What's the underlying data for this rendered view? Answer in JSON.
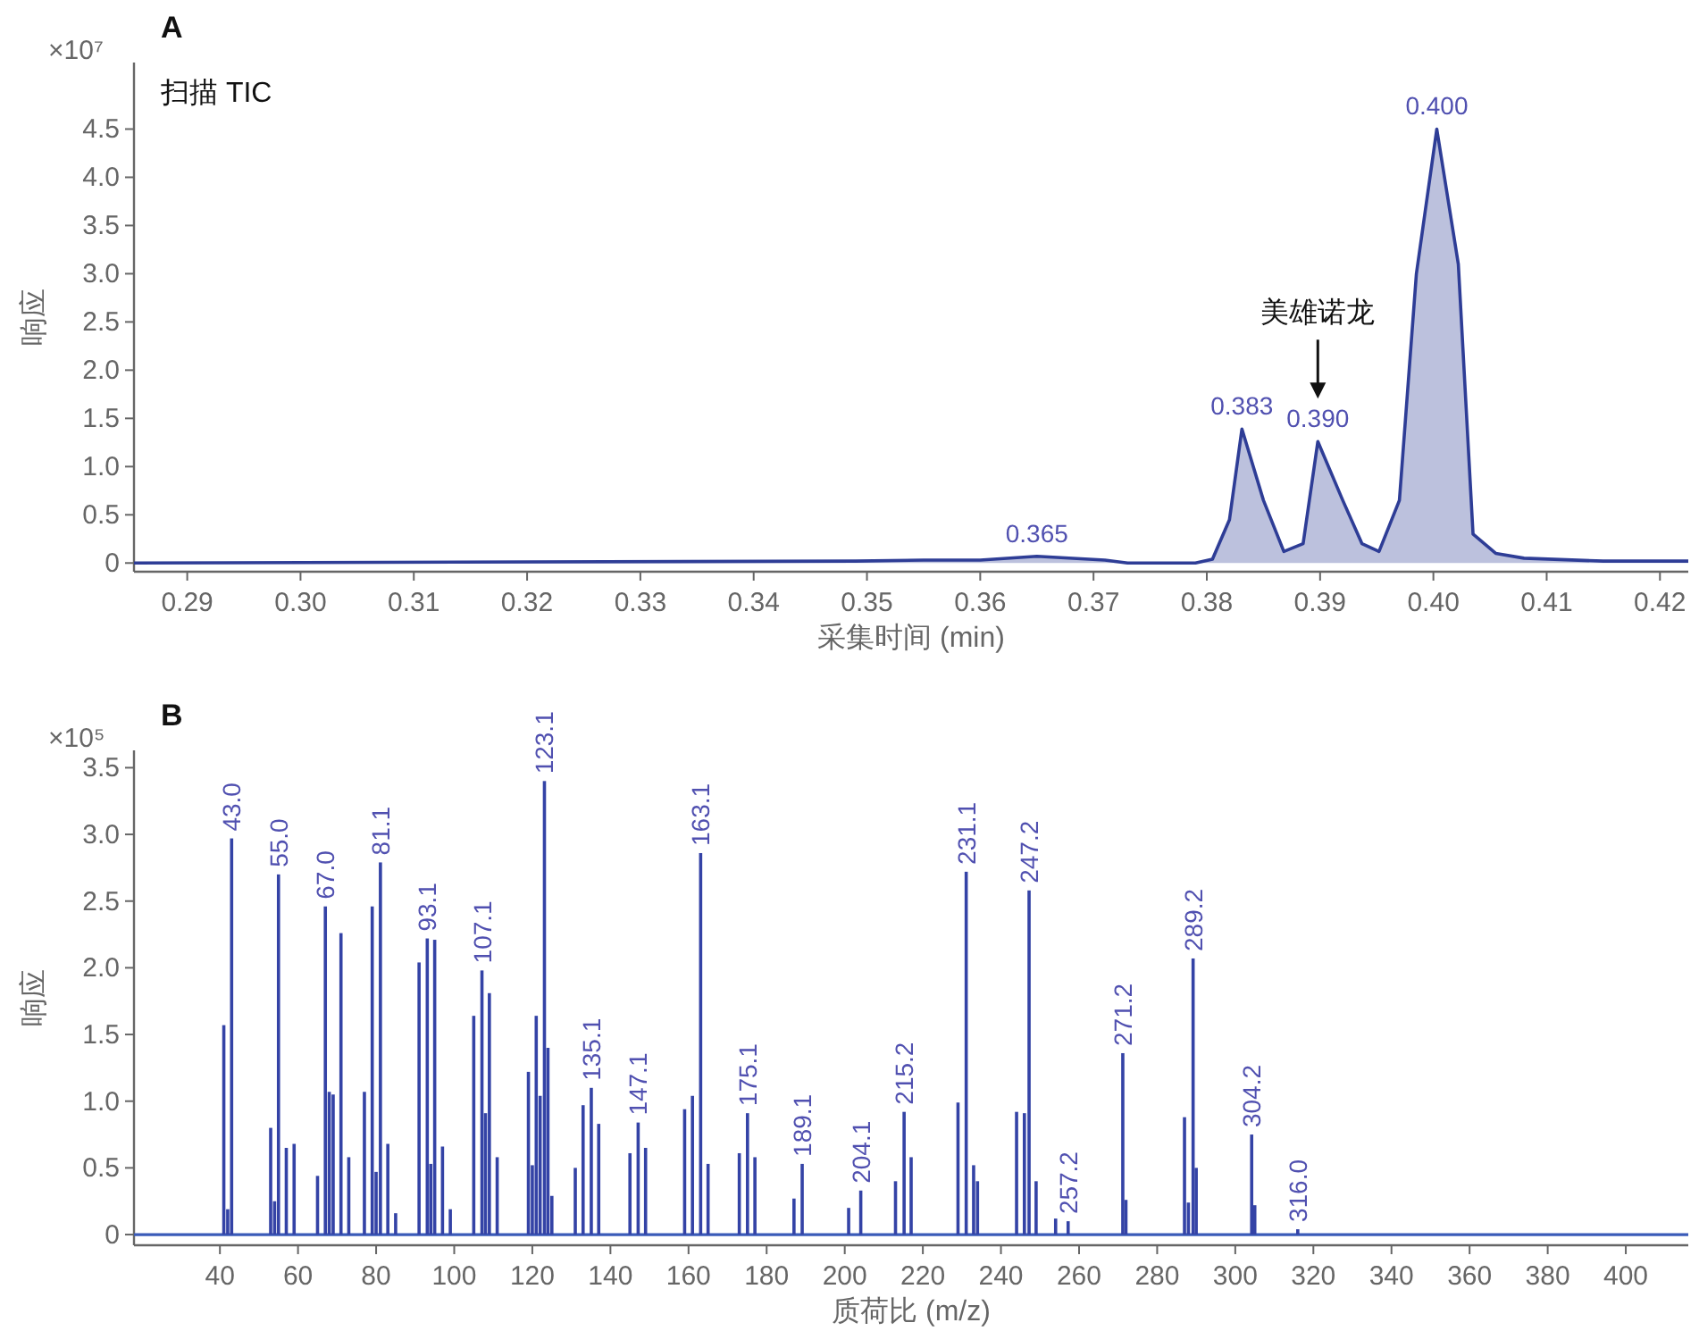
{
  "chart_data": [
    {
      "type": "area",
      "title": "A",
      "xlabel": "采集时间 (min)",
      "ylabel": "响应",
      "color": "#2e3d96",
      "x": [
        0.2853,
        0.349,
        0.355,
        0.36,
        0.365,
        0.371,
        0.373,
        0.379,
        0.3805,
        0.382,
        0.3831,
        0.385,
        0.3868,
        0.3885,
        0.3898,
        0.392,
        0.3937,
        0.3952,
        0.397,
        0.3985,
        0.4003,
        0.4022,
        0.4035,
        0.4055,
        0.408,
        0.415,
        0.4225
      ],
      "values": [
        0,
        0.02,
        0.03,
        0.03,
        0.07,
        0.03,
        0,
        0,
        0.04,
        0.45,
        1.39,
        0.65,
        0.12,
        0.2,
        1.26,
        0.65,
        0.2,
        0.12,
        0.65,
        3.0,
        4.5,
        3.1,
        0.3,
        0.1,
        0.05,
        0.02,
        0.02
      ],
      "xlim": [
        0.2853,
        0.4225
      ],
      "ylim": [
        -0.09,
        5.19
      ],
      "xticks": [
        0.29,
        {
          "value": 0.3,
          "label": "0.30"
        },
        0.31,
        0.32,
        0.33,
        0.34,
        0.35,
        0.36,
        0.37,
        0.38,
        0.39,
        {
          "value": 0.4,
          "label": "0.40"
        },
        0.41,
        0.42
      ],
      "yticks": [
        0,
        0.5,
        {
          "value": 1,
          "label": "1.0"
        },
        1.5,
        {
          "value": 2,
          "label": "2.0"
        },
        2.5,
        {
          "value": 3,
          "label": "3.0"
        },
        3.5,
        {
          "value": 4,
          "label": "4.0"
        },
        4.5
      ],
      "annotations": [
        "×10⁷",
        "扫描 TIC",
        {
          "text": "0.365",
          "x": 0.365,
          "y": 0.07
        },
        {
          "text": "0.383",
          "x": 0.3831,
          "y": 1.39
        },
        {
          "text": "0.390",
          "x": 0.3898,
          "y": 1.26
        },
        "美雄诺龙",
        {
          "text": "0.400",
          "x": 0.4003,
          "y": 4.5
        }
      ]
    },
    {
      "type": "bar",
      "title": "B",
      "xlabel": "质荷比 (m/z)",
      "ylabel": "响应",
      "color": "#3443a6",
      "x": [
        41,
        42,
        43.0,
        53,
        54,
        55.0,
        57,
        59,
        65,
        67.0,
        68,
        69,
        71,
        73,
        77,
        79,
        80,
        81.1,
        83,
        85,
        91,
        93.1,
        94,
        95,
        97,
        99,
        105,
        107.1,
        108,
        109,
        111,
        119,
        120,
        121,
        122,
        123.1,
        124,
        125,
        131,
        133,
        135.1,
        137,
        145,
        147.1,
        149,
        159,
        161,
        163.1,
        165,
        173,
        175.1,
        177,
        187,
        189.1,
        201,
        204.1,
        213,
        215.2,
        217,
        229,
        231.1,
        233,
        234,
        244,
        246,
        247.2,
        249,
        254,
        257.2,
        271.2,
        272,
        287,
        288,
        289.2,
        290,
        304.2,
        305,
        316.0
      ],
      "values": [
        1.57,
        0.19,
        2.97,
        0.8,
        0.25,
        2.7,
        0.65,
        0.68,
        0.44,
        2.46,
        1.07,
        1.05,
        2.26,
        0.58,
        1.07,
        2.46,
        0.47,
        2.79,
        0.68,
        0.16,
        2.04,
        2.22,
        0.53,
        2.21,
        0.66,
        0.19,
        1.64,
        1.98,
        0.91,
        1.81,
        0.58,
        1.22,
        0.52,
        1.64,
        1.04,
        3.4,
        1.4,
        0.29,
        0.5,
        0.97,
        1.1,
        0.83,
        0.61,
        0.84,
        0.65,
        0.94,
        1.04,
        2.86,
        0.53,
        0.61,
        0.91,
        0.58,
        0.27,
        0.53,
        0.2,
        0.33,
        0.4,
        0.92,
        0.58,
        0.99,
        2.72,
        0.52,
        0.4,
        0.92,
        0.91,
        2.58,
        0.4,
        0.12,
        0.1,
        1.36,
        0.26,
        0.88,
        0.24,
        2.07,
        0.5,
        0.75,
        0.22,
        0.04
      ],
      "xlim": [
        18,
        416
      ],
      "ylim": [
        -0.08,
        3.63
      ],
      "xticks": [
        40,
        60,
        80,
        100,
        120,
        140,
        160,
        180,
        200,
        220,
        240,
        260,
        280,
        300,
        320,
        340,
        360,
        380,
        400
      ],
      "yticks": [
        0,
        0.5,
        {
          "value": 1,
          "label": "1.0"
        },
        1.5,
        {
          "value": 2,
          "label": "2.0"
        },
        2.5,
        {
          "value": 3,
          "label": "3.0"
        },
        3.5
      ],
      "ref_lines": [
        {
          "axis": "y",
          "value": 0,
          "color": "#3a5bb8"
        }
      ],
      "annotations": [
        "×10⁵",
        {
          "text": "43.0",
          "x": 43.0,
          "y": 2.97
        },
        {
          "text": "55.0",
          "x": 55.0,
          "y": 2.7
        },
        {
          "text": "67.0",
          "x": 67.0,
          "y": 2.46
        },
        {
          "text": "81.1",
          "x": 81.1,
          "y": 2.79
        },
        {
          "text": "93.1",
          "x": 93.1,
          "y": 2.22
        },
        {
          "text": "107.1",
          "x": 107.1,
          "y": 1.98
        },
        {
          "text": "123.1",
          "x": 123.1,
          "y": 3.4
        },
        {
          "text": "135.1",
          "x": 135.1,
          "y": 1.1
        },
        {
          "text": "147.1",
          "x": 147.1,
          "y": 0.84
        },
        {
          "text": "163.1",
          "x": 163.1,
          "y": 2.86
        },
        {
          "text": "175.1",
          "x": 175.1,
          "y": 0.91
        },
        {
          "text": "189.1",
          "x": 189.1,
          "y": 0.53
        },
        {
          "text": "204.1",
          "x": 204.1,
          "y": 0.33
        },
        {
          "text": "215.2",
          "x": 215.2,
          "y": 0.92
        },
        {
          "text": "231.1",
          "x": 231.1,
          "y": 2.72
        },
        {
          "text": "247.2",
          "x": 247.2,
          "y": 2.58
        },
        {
          "text": "257.2",
          "x": 257.2,
          "y": 0.1
        },
        {
          "text": "271.2",
          "x": 271.2,
          "y": 1.36
        },
        {
          "text": "289.2",
          "x": 289.2,
          "y": 2.07
        },
        {
          "text": "304.2",
          "x": 304.2,
          "y": 0.75
        },
        {
          "text": "316.0",
          "x": 316.0,
          "y": 0.04
        }
      ]
    }
  ]
}
